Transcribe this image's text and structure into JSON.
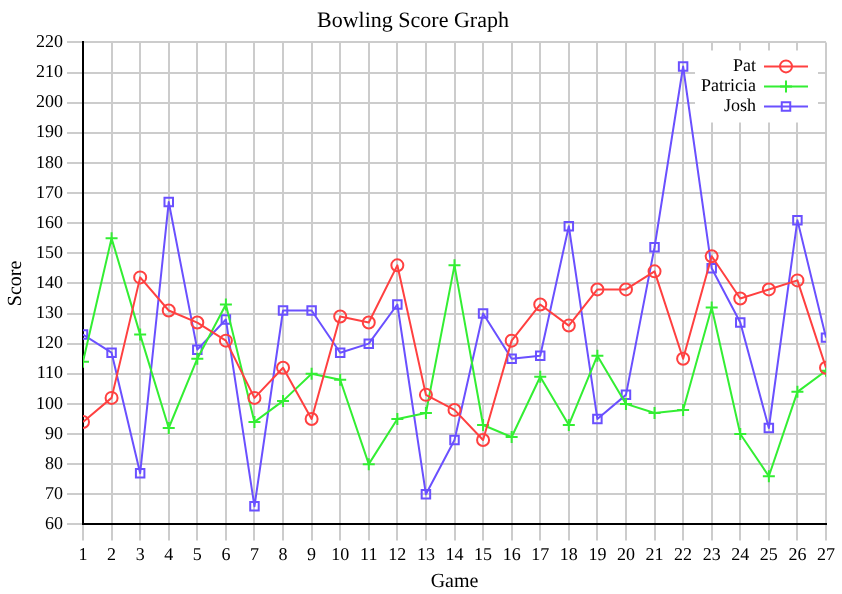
{
  "chart_data": {
    "type": "line",
    "title": "Bowling Score Graph",
    "xlabel": "Game",
    "ylabel": "Score",
    "x": [
      1,
      2,
      3,
      4,
      5,
      6,
      7,
      8,
      9,
      10,
      11,
      12,
      13,
      14,
      15,
      16,
      17,
      18,
      19,
      20,
      21,
      22,
      23,
      24,
      25,
      26,
      27
    ],
    "xlim": [
      1,
      27
    ],
    "xticks": [
      1,
      2,
      3,
      4,
      5,
      6,
      7,
      8,
      9,
      10,
      11,
      12,
      13,
      14,
      15,
      16,
      17,
      18,
      19,
      20,
      21,
      22,
      23,
      24,
      25,
      26,
      27
    ],
    "ylim": [
      60,
      220
    ],
    "yticks": [
      60,
      70,
      80,
      90,
      100,
      110,
      120,
      130,
      140,
      150,
      160,
      170,
      180,
      190,
      200,
      210,
      220
    ],
    "grid": true,
    "legend": "top right",
    "series": [
      {
        "name": "Pat",
        "color": "#ff4040",
        "marker": "circle",
        "values": [
          94,
          102,
          142,
          131,
          127,
          121,
          102,
          112,
          95,
          129,
          127,
          146,
          103,
          98,
          88,
          121,
          133,
          126,
          138,
          138,
          144,
          115,
          149,
          135,
          138,
          141,
          112
        ]
      },
      {
        "name": "Patricia",
        "color": "#33ee33",
        "marker": "cross",
        "values": [
          114,
          155,
          123,
          92,
          115,
          133,
          94,
          101,
          110,
          108,
          80,
          95,
          97,
          146,
          93,
          89,
          109,
          93,
          116,
          100,
          97,
          98,
          132,
          90,
          76,
          104,
          111
        ]
      },
      {
        "name": "Josh",
        "color": "#6a50ff",
        "marker": "square",
        "values": [
          123,
          117,
          77,
          167,
          118,
          128,
          66,
          131,
          131,
          117,
          120,
          133,
          70,
          88,
          130,
          115,
          116,
          159,
          95,
          103,
          152,
          212,
          145,
          127,
          92,
          161,
          122
        ]
      }
    ]
  }
}
